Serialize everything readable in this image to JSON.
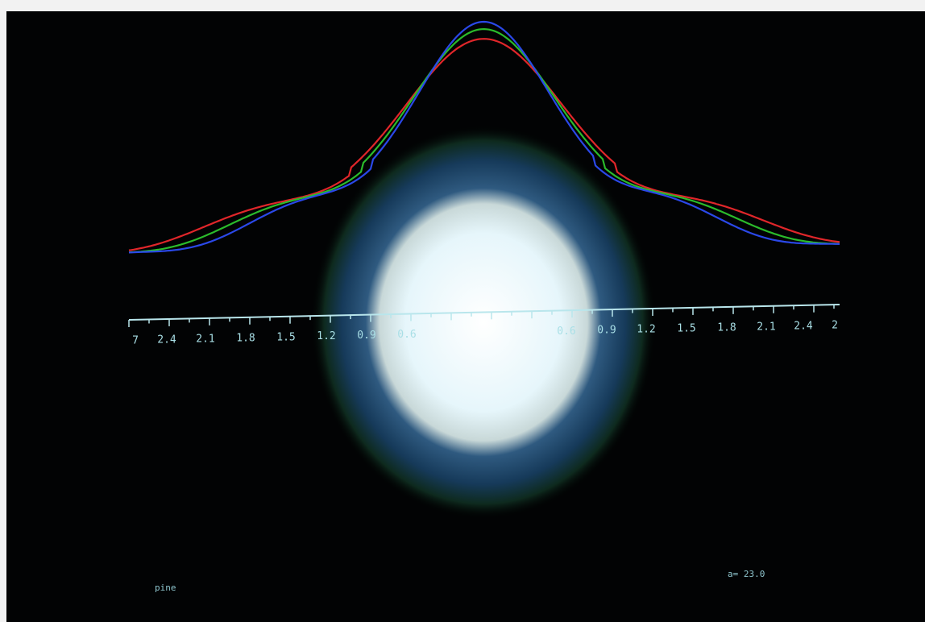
{
  "axis_labels": [
    "7",
    "2.4",
    "2.1",
    "1.8",
    "1.5",
    "1.2",
    "0.9",
    "0.6",
    "0.6",
    "0.9",
    "1.2",
    "1.5",
    "1.8",
    "2.1",
    "2.4",
    "2"
  ],
  "footer_left": "pine",
  "footer_right": "a= 23.0"
}
